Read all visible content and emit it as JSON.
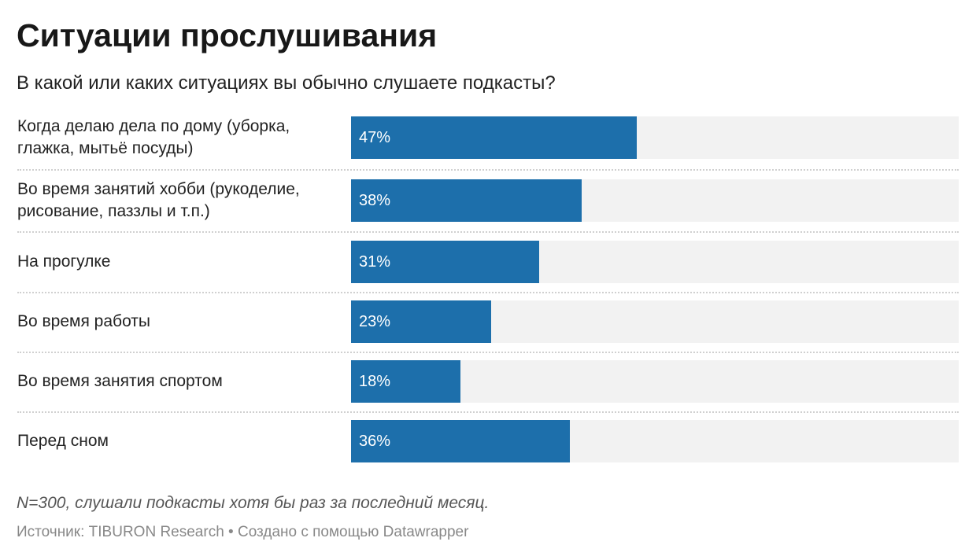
{
  "title": "Ситуации прослушивания",
  "subtitle": "В какой или каких ситуациях вы обычно слушаете подкасты?",
  "chart_data": {
    "type": "bar",
    "orientation": "horizontal",
    "categories": [
      "Когда делаю дела по дому (уборка, глажка, мытьё посуды)",
      "Во время занятий хобби (рукоделие, рисование, паззлы и т.п.)",
      "На прогулке",
      "Во время работы",
      "Во время занятия спортом",
      "Перед сном"
    ],
    "values": [
      47,
      38,
      31,
      23,
      18,
      36
    ],
    "labels": [
      "47%",
      "38%",
      "31%",
      "23%",
      "18%",
      "36%"
    ],
    "xlim": [
      0,
      100
    ],
    "unit": "%",
    "grid": false,
    "bar_color": "#1d6fab",
    "track_color": "#f2f2f2"
  },
  "notes": "N=300, слушали подкасты хотя бы раз за последний месяц.",
  "footer": {
    "source": "Источник: TIBURON Research",
    "separator": "•",
    "credit": "Создано с помощью Datawrapper"
  }
}
